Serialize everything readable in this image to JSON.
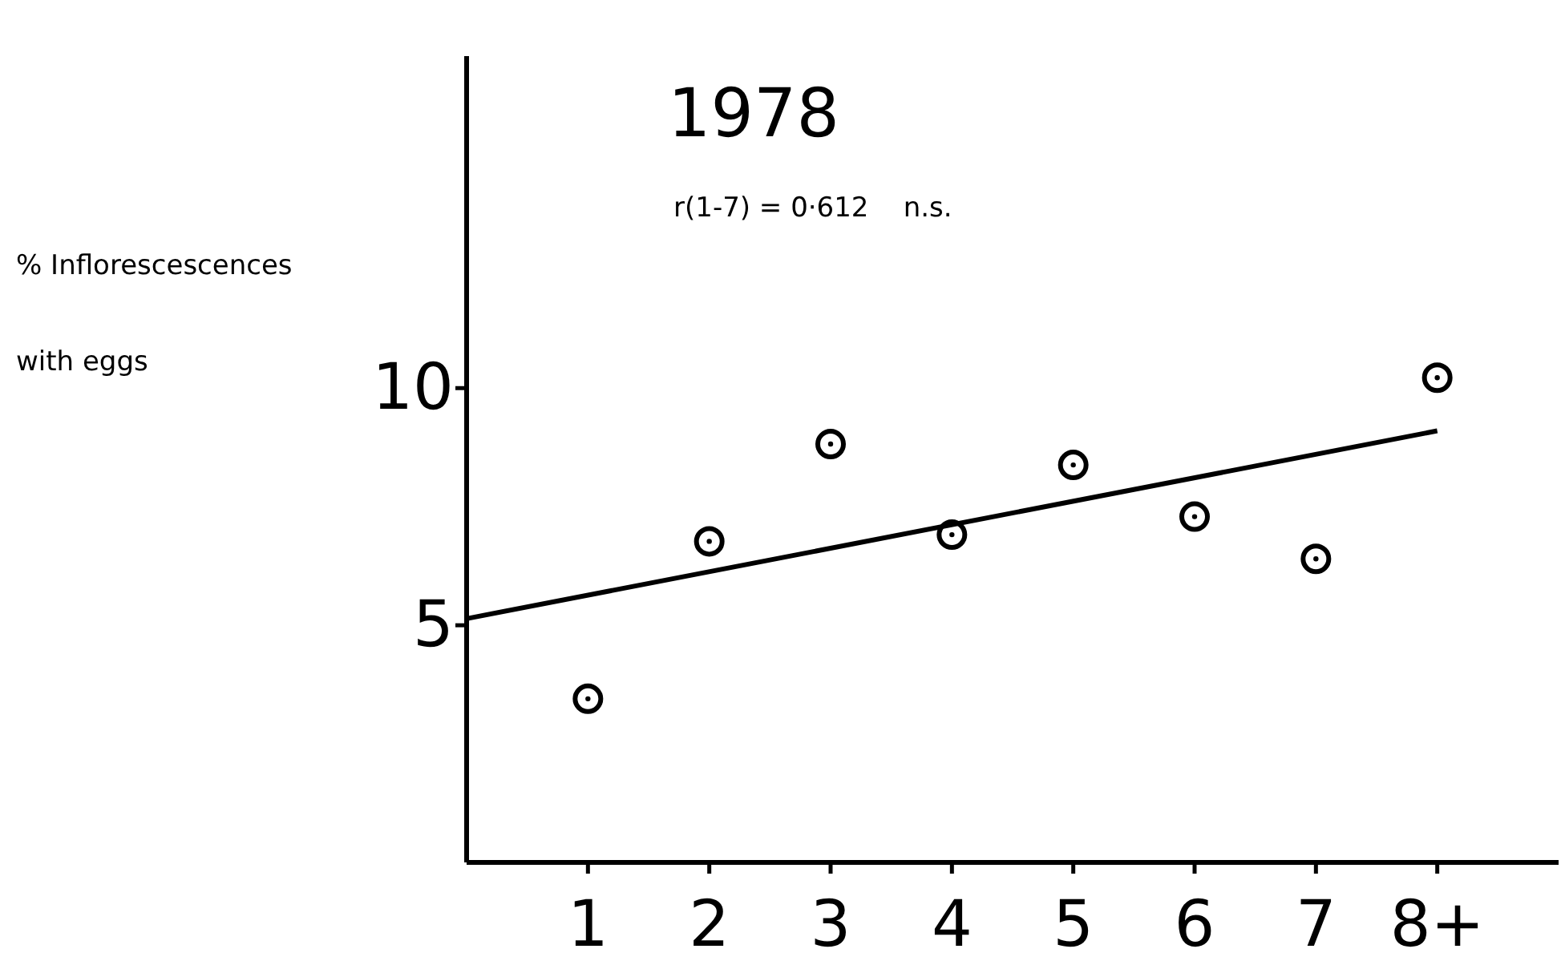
{
  "chart_data": {
    "type": "scatter",
    "title": "1978",
    "ylabel": "% Inflorescescences with eggs",
    "annotations": [
      "r(1-7) = 0·612    n.s."
    ],
    "xlim": [
      0,
      9
    ],
    "xticks": [
      1,
      2,
      3,
      4,
      5,
      6,
      7,
      {
        "value": 8,
        "label": "8+"
      }
    ],
    "ylim": [
      0,
      17
    ],
    "yticks": [
      5,
      10
    ],
    "grid": false,
    "marker": "circle",
    "series": [
      {
        "color": "#000000",
        "x": [
          1,
          2,
          3,
          4,
          5,
          6,
          7,
          8
        ],
        "values": [
          3.45,
          6.77,
          8.82,
          6.91,
          8.38,
          7.29,
          6.4,
          10.22
        ]
      },
      {
        "type": "line",
        "color": "#000000",
        "marker": "none",
        "line_style": "solid",
        "x": [
          0,
          8
        ],
        "values": [
          5.14,
          9.1
        ]
      }
    ]
  }
}
